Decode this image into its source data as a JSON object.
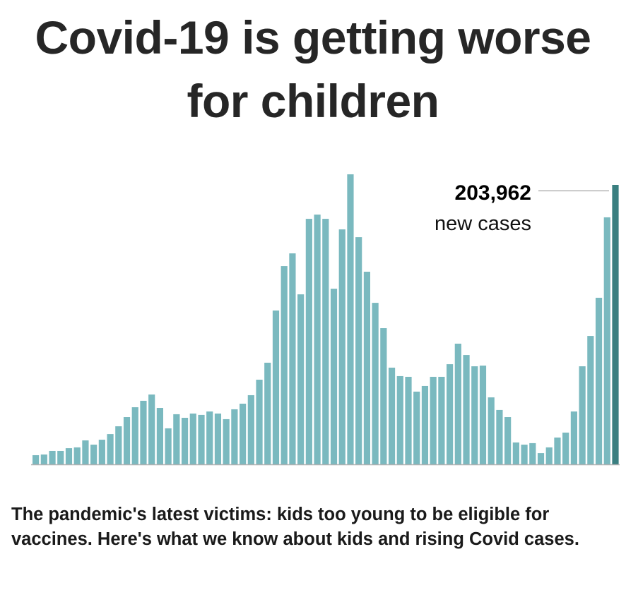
{
  "title": "Covid-19 is getting worse for children",
  "caption": "The pandemic's latest victims: kids too young to be eligible for vaccines. Here's what we know about kids and rising Covid cases.",
  "colors": {
    "bar": "#7ab9bf",
    "highlight": "#3a7f80",
    "axis": "#b0b0b0",
    "leader": "#8a8a8a"
  },
  "chart_data": {
    "type": "bar",
    "title": "Covid-19 is getting worse for children",
    "xlabel": "",
    "ylabel": "New cases",
    "grid": false,
    "ylim": [
      0,
      211700
    ],
    "values": [
      6700,
      7200,
      9800,
      9800,
      11800,
      12400,
      17500,
      14400,
      18000,
      22100,
      27800,
      34500,
      41700,
      46400,
      51000,
      41200,
      26300,
      36600,
      34000,
      37100,
      36100,
      38600,
      37100,
      33000,
      40200,
      44300,
      50500,
      61800,
      74200,
      112300,
      144700,
      154000,
      124100,
      179200,
      182300,
      179200,
      128200,
      171500,
      211700,
      165800,
      140600,
      117900,
      99400,
      70600,
      64400,
      63900,
      53100,
      57200,
      63900,
      63900,
      73100,
      88100,
      79800,
      71600,
      72100,
      48900,
      39700,
      34500,
      16000,
      14400,
      15500,
      8200,
      12400,
      19600,
      23200,
      38600,
      71600,
      93700,
      121600,
      180300,
      203962
    ],
    "annotation": {
      "value_label": "203,962",
      "text": "new cases"
    }
  }
}
